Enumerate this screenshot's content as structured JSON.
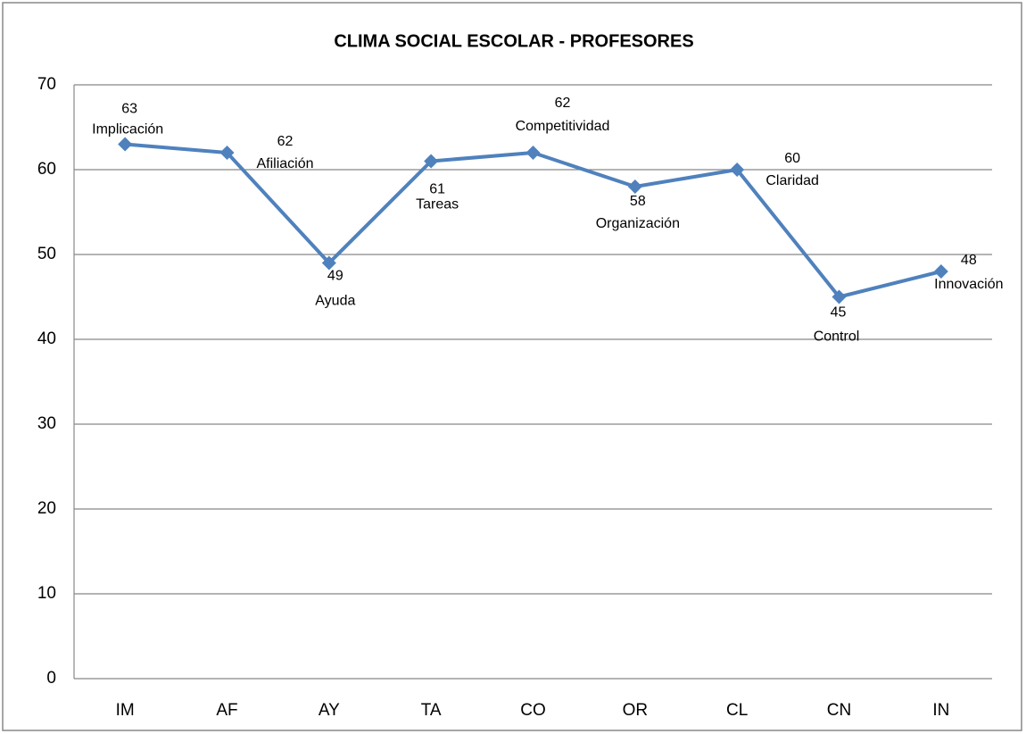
{
  "chart_data": {
    "type": "line",
    "title": "CLIMA SOCIAL ESCOLAR - PROFESORES",
    "categories": [
      "IM",
      "AF",
      "AY",
      "TA",
      "CO",
      "OR",
      "CL",
      "CN",
      "IN"
    ],
    "series": [
      {
        "color": "#4f81bd",
        "values": [
          63,
          62,
          49,
          61,
          62,
          58,
          60,
          45,
          48
        ]
      }
    ],
    "annotations": [
      "Implicación",
      "Afiliación",
      "Ayuda",
      "Tareas",
      "Competitividad",
      "Organización",
      "Claridad",
      "Control",
      "Innovación"
    ],
    "ylim": [
      0,
      70
    ],
    "yticks": [
      0,
      10,
      20,
      30,
      40,
      50,
      60,
      70
    ],
    "grid": true
  }
}
